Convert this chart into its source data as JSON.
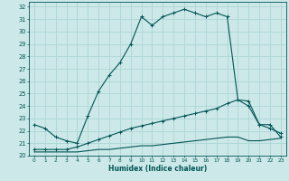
{
  "xlabel": "Humidex (Indice chaleur)",
  "bg_color": "#cde8e8",
  "grid_color": "#b0d8d8",
  "line_color": "#005555",
  "xlim": [
    -0.5,
    23.5
  ],
  "ylim": [
    20,
    32.4
  ],
  "xticks": [
    0,
    1,
    2,
    3,
    4,
    5,
    6,
    7,
    8,
    9,
    10,
    11,
    12,
    13,
    14,
    15,
    16,
    17,
    18,
    19,
    20,
    21,
    22,
    23
  ],
  "yticks": [
    20,
    21,
    22,
    23,
    24,
    25,
    26,
    27,
    28,
    29,
    30,
    31,
    32
  ],
  "series1_x": [
    0,
    1,
    2,
    3,
    4,
    5,
    6,
    7,
    8,
    9,
    10,
    11,
    12,
    13,
    14,
    15,
    16,
    17,
    18,
    19,
    20,
    21,
    22,
    23
  ],
  "series1_y": [
    22.5,
    22.2,
    21.5,
    21.2,
    21.0,
    23.2,
    25.2,
    26.5,
    27.5,
    29.0,
    31.2,
    30.5,
    31.2,
    31.5,
    31.8,
    31.5,
    31.2,
    31.5,
    31.2,
    24.5,
    24.0,
    22.5,
    22.5,
    21.5
  ],
  "series2_x": [
    0,
    1,
    2,
    3,
    4,
    5,
    6,
    7,
    8,
    9,
    10,
    11,
    12,
    13,
    14,
    15,
    16,
    17,
    18,
    19,
    20,
    21,
    22,
    23
  ],
  "series2_y": [
    20.5,
    20.5,
    20.5,
    20.5,
    20.7,
    21.0,
    21.3,
    21.6,
    21.9,
    22.2,
    22.4,
    22.6,
    22.8,
    23.0,
    23.2,
    23.4,
    23.6,
    23.8,
    24.2,
    24.5,
    24.4,
    22.5,
    22.2,
    21.8
  ],
  "series3_x": [
    0,
    1,
    2,
    3,
    4,
    5,
    6,
    7,
    8,
    9,
    10,
    11,
    12,
    13,
    14,
    15,
    16,
    17,
    18,
    19,
    20,
    21,
    22,
    23
  ],
  "series3_y": [
    20.3,
    20.3,
    20.3,
    20.3,
    20.3,
    20.4,
    20.5,
    20.5,
    20.6,
    20.7,
    20.8,
    20.8,
    20.9,
    21.0,
    21.1,
    21.2,
    21.3,
    21.4,
    21.5,
    21.5,
    21.2,
    21.2,
    21.3,
    21.4
  ]
}
